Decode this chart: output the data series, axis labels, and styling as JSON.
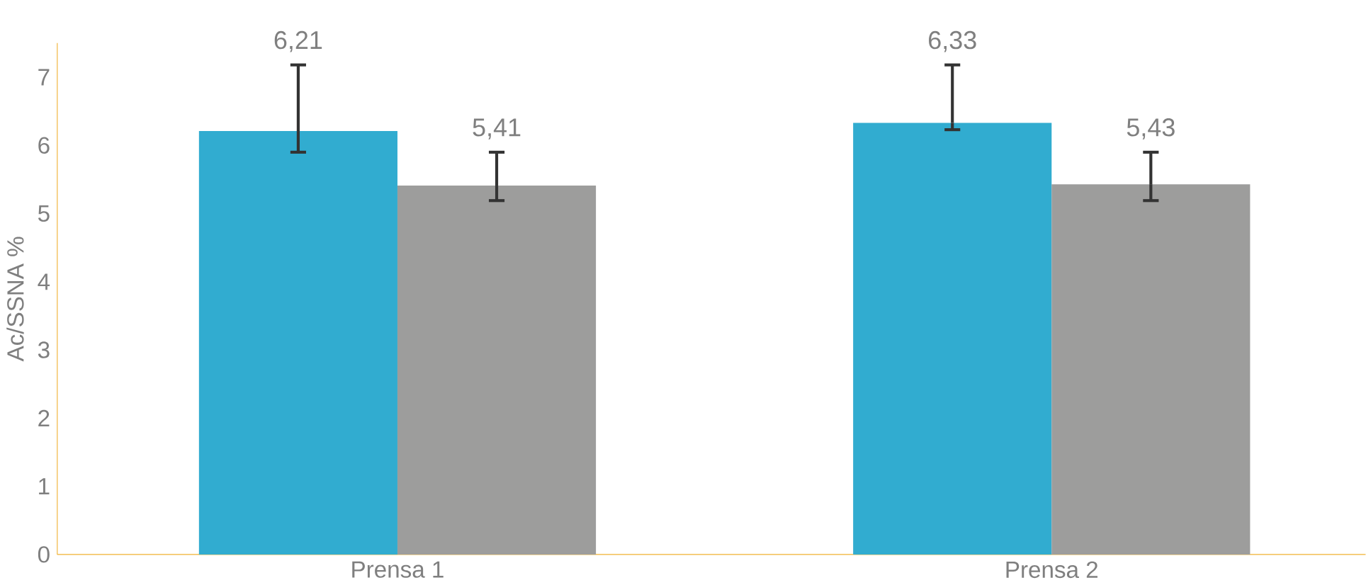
{
  "chart_data": {
    "type": "bar",
    "ylabel": "Ac/SSNA %",
    "categories": [
      "Prensa 1",
      "Prensa 2"
    ],
    "series": [
      {
        "color": "#31acd0",
        "values": [
          6.21,
          6.33
        ],
        "errors": [
          [
            5.9,
            7.18
          ],
          [
            6.23,
            7.18
          ]
        ],
        "value_labels": [
          "6,21",
          "6,33"
        ]
      },
      {
        "color": "#9d9d9c",
        "values": [
          5.41,
          5.43
        ],
        "errors": [
          [
            5.19,
            5.9
          ],
          [
            5.19,
            5.9
          ]
        ],
        "value_labels": [
          "5,41",
          "5,43"
        ]
      }
    ],
    "ylim": [
      0,
      7.5
    ],
    "yticks": [
      0,
      1,
      2,
      3,
      4,
      5,
      6,
      7
    ],
    "grid": false
  }
}
